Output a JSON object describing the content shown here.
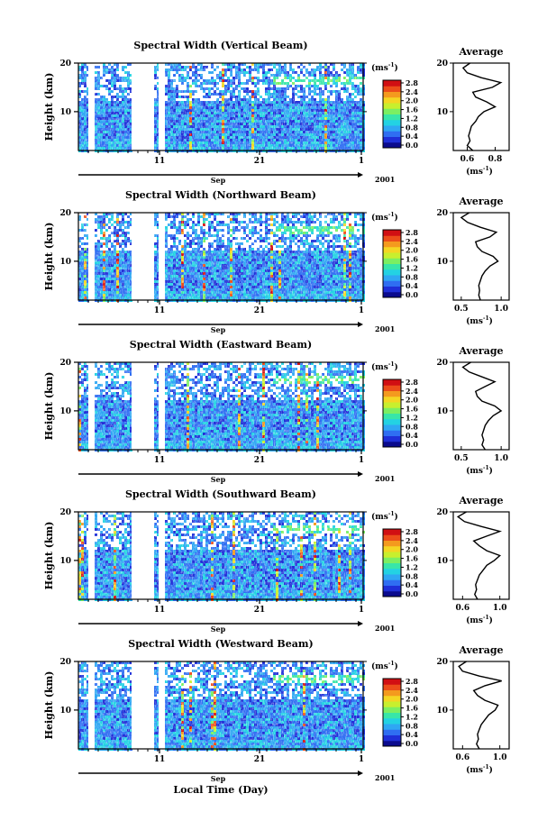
{
  "chart_data": [
    {
      "type": "heatmap",
      "title": "Spectral Width (Vertical Beam)",
      "ylabel": "Height (km)",
      "y_ticks": [
        "20",
        "10"
      ],
      "x_ticks": [
        "11",
        "21",
        "1"
      ],
      "month_label": "Sep",
      "year_label": "2001",
      "colorbar": {
        "unit": "(ms",
        "unit_exp": "-1",
        "unit_close": ")",
        "ticks": [
          "2.8",
          "2.4",
          "2.0",
          "1.6",
          "1.2",
          "0.8",
          "0.4",
          "0.0"
        ]
      },
      "profile": {
        "title": "Average",
        "y_ticks": [
          "20",
          "10"
        ],
        "x_ticks": [
          "0.6",
          "0.8"
        ],
        "xlabel": "(ms",
        "xlabel_exp": "-1",
        "xlabel_close": ")",
        "xlim": [
          0.5,
          0.9
        ],
        "height_km": [
          2,
          3,
          4,
          5,
          6,
          7,
          8,
          9,
          10,
          11,
          12,
          13,
          14,
          15,
          16,
          17,
          18,
          19,
          20
        ],
        "values": [
          0.64,
          0.6,
          0.62,
          0.61,
          0.62,
          0.63,
          0.66,
          0.68,
          0.72,
          0.8,
          0.74,
          0.66,
          0.64,
          0.78,
          0.84,
          0.7,
          0.6,
          0.57,
          0.62
        ]
      }
    },
    {
      "type": "heatmap",
      "title": "Spectral Width (Northward Beam)",
      "ylabel": "Height (km)",
      "y_ticks": [
        "20",
        "10"
      ],
      "x_ticks": [
        "11",
        "21",
        "1"
      ],
      "month_label": "Sep",
      "year_label": "2001",
      "colorbar": {
        "unit": "(ms",
        "unit_exp": "-1",
        "unit_close": ")",
        "ticks": [
          "2.8",
          "2.4",
          "2.0",
          "1.6",
          "1.2",
          "0.8",
          "0.4",
          "0.0"
        ]
      },
      "profile": {
        "title": "Average",
        "y_ticks": [
          "20",
          "10"
        ],
        "x_ticks": [
          "0.5",
          "1.0"
        ],
        "xlabel": "(ms",
        "xlabel_exp": "-1",
        "xlabel_close": ")",
        "xlim": [
          0.4,
          1.1
        ],
        "height_km": [
          2,
          3,
          4,
          5,
          6,
          7,
          8,
          9,
          10,
          11,
          12,
          13,
          14,
          15,
          16,
          17,
          18,
          19,
          20
        ],
        "values": [
          0.74,
          0.72,
          0.73,
          0.72,
          0.74,
          0.76,
          0.8,
          0.86,
          0.96,
          0.9,
          0.76,
          0.7,
          0.68,
          0.86,
          0.94,
          0.74,
          0.58,
          0.5,
          0.6
        ]
      }
    },
    {
      "type": "heatmap",
      "title": "Spectral Width (Eastward Beam)",
      "ylabel": "Height (km)",
      "y_ticks": [
        "20",
        "10"
      ],
      "x_ticks": [
        "11",
        "21",
        "1"
      ],
      "month_label": "Sep",
      "year_label": "2001",
      "colorbar": {
        "unit": "(ms",
        "unit_exp": "-1",
        "unit_close": ")",
        "ticks": [
          "2.8",
          "2.4",
          "2.0",
          "1.6",
          "1.2",
          "0.8",
          "0.4",
          "0.0"
        ]
      },
      "profile": {
        "title": "Average",
        "y_ticks": [
          "20",
          "10"
        ],
        "x_ticks": [
          "0.5",
          "1.0"
        ],
        "xlabel": "(ms",
        "xlabel_exp": "-1",
        "xlabel_close": ")",
        "xlim": [
          0.4,
          1.1
        ],
        "height_km": [
          2,
          3,
          4,
          5,
          6,
          7,
          8,
          9,
          10,
          11,
          12,
          13,
          14,
          15,
          16,
          17,
          18,
          19,
          20
        ],
        "values": [
          0.8,
          0.76,
          0.78,
          0.76,
          0.78,
          0.8,
          0.84,
          0.9,
          1.0,
          0.92,
          0.76,
          0.7,
          0.68,
          0.8,
          0.92,
          0.76,
          0.6,
          0.52,
          0.62
        ]
      }
    },
    {
      "type": "heatmap",
      "title": "Spectral Width (Southward Beam)",
      "ylabel": "Height (km)",
      "y_ticks": [
        "20",
        "10"
      ],
      "x_ticks": [
        "11",
        "21",
        "1"
      ],
      "month_label": "Sep",
      "year_label": "2001",
      "colorbar": {
        "unit": "(ms",
        "unit_exp": "-1",
        "unit_close": ")",
        "ticks": [
          "2.8",
          "2.4",
          "2.0",
          "1.6",
          "1.2",
          "0.8",
          "0.4",
          "0.0"
        ]
      },
      "profile": {
        "title": "Average",
        "y_ticks": [
          "20",
          "10"
        ],
        "x_ticks": [
          "0.6",
          "1.0"
        ],
        "xlabel": "(ms",
        "xlabel_exp": "-1",
        "xlabel_close": ")",
        "xlim": [
          0.5,
          1.1
        ],
        "height_km": [
          2,
          3,
          4,
          5,
          6,
          7,
          8,
          9,
          10,
          11,
          12,
          13,
          14,
          15,
          16,
          17,
          18,
          19,
          20
        ],
        "values": [
          0.76,
          0.73,
          0.75,
          0.74,
          0.76,
          0.78,
          0.82,
          0.86,
          0.94,
          1.0,
          0.86,
          0.78,
          0.72,
          0.86,
          1.0,
          0.8,
          0.62,
          0.55,
          0.64
        ]
      }
    },
    {
      "type": "heatmap",
      "title": "Spectral Width (Westward Beam)",
      "ylabel": "Height (km)",
      "y_ticks": [
        "20",
        "10"
      ],
      "x_ticks": [
        "11",
        "21",
        "1"
      ],
      "month_label": "Sep",
      "year_label": "2001",
      "colorbar": {
        "unit": "(ms",
        "unit_exp": "-1",
        "unit_close": ")",
        "ticks": [
          "2.8",
          "2.4",
          "2.0",
          "1.6",
          "1.2",
          "0.8",
          "0.4",
          "0.0"
        ]
      },
      "profile": {
        "title": "Average",
        "y_ticks": [
          "20",
          "10"
        ],
        "x_ticks": [
          "0.6",
          "1.0"
        ],
        "xlabel": "(ms",
        "xlabel_exp": "-1",
        "xlabel_close": ")",
        "xlim": [
          0.5,
          1.1
        ],
        "height_km": [
          2,
          3,
          4,
          5,
          6,
          7,
          8,
          9,
          10,
          11,
          12,
          13,
          14,
          15,
          16,
          17,
          18,
          19,
          20
        ],
        "values": [
          0.78,
          0.75,
          0.77,
          0.76,
          0.78,
          0.8,
          0.84,
          0.88,
          0.95,
          0.98,
          0.84,
          0.76,
          0.72,
          0.84,
          1.02,
          0.78,
          0.6,
          0.56,
          0.64
        ]
      }
    }
  ],
  "xlabel": "Local Time (Day)",
  "colormap": [
    "#0b0b8e",
    "#1f2fd8",
    "#2f6ef2",
    "#2fa7f3",
    "#23d2e3",
    "#38e6a8",
    "#7bef62",
    "#c8ef2e",
    "#f4d623",
    "#f49a1e",
    "#ec4d1a",
    "#d10f13"
  ]
}
